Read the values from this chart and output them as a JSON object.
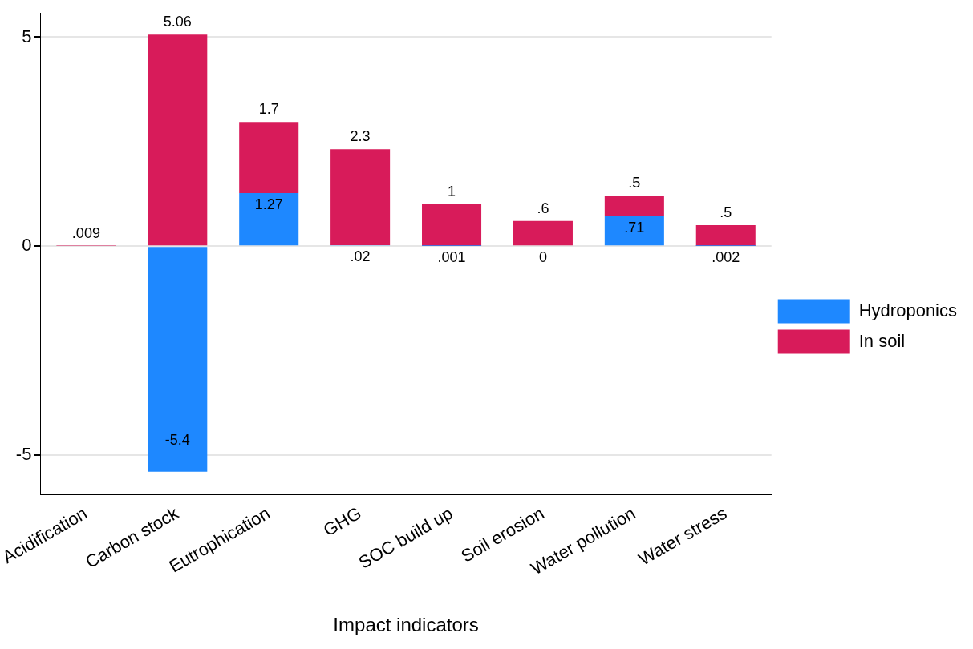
{
  "chart_data": {
    "type": "bar",
    "stacked": true,
    "xlabel": "Impact indicators",
    "categories": [
      "Acidification",
      "Carbon stock",
      "Eutrophication",
      "GHG",
      "SOC build up",
      "Soil erosion",
      "Water pollution",
      "Water stress"
    ],
    "series": [
      {
        "name": "Hydroponics",
        "color": "#1e88ff",
        "values": [
          null,
          -5.4,
          1.27,
          0.02,
          0.001,
          0,
          0.71,
          0.002
        ],
        "value_labels": [
          null,
          "-5.4",
          "1.27",
          ".02",
          ".001",
          "0",
          ".71",
          ".002"
        ]
      },
      {
        "name": "In soil",
        "color": "#d81b5a",
        "values": [
          0.009,
          5.06,
          1.7,
          2.3,
          1,
          0.6,
          0.5,
          0.5
        ],
        "value_labels": [
          ".009",
          "5.06",
          "1.7",
          "2.3",
          "1",
          ".6",
          ".5",
          ".5"
        ]
      }
    ],
    "ylim": [
      -5.95,
      5.58
    ],
    "yticks": [
      -5,
      0,
      5
    ],
    "grid": "y",
    "legend": "right"
  }
}
